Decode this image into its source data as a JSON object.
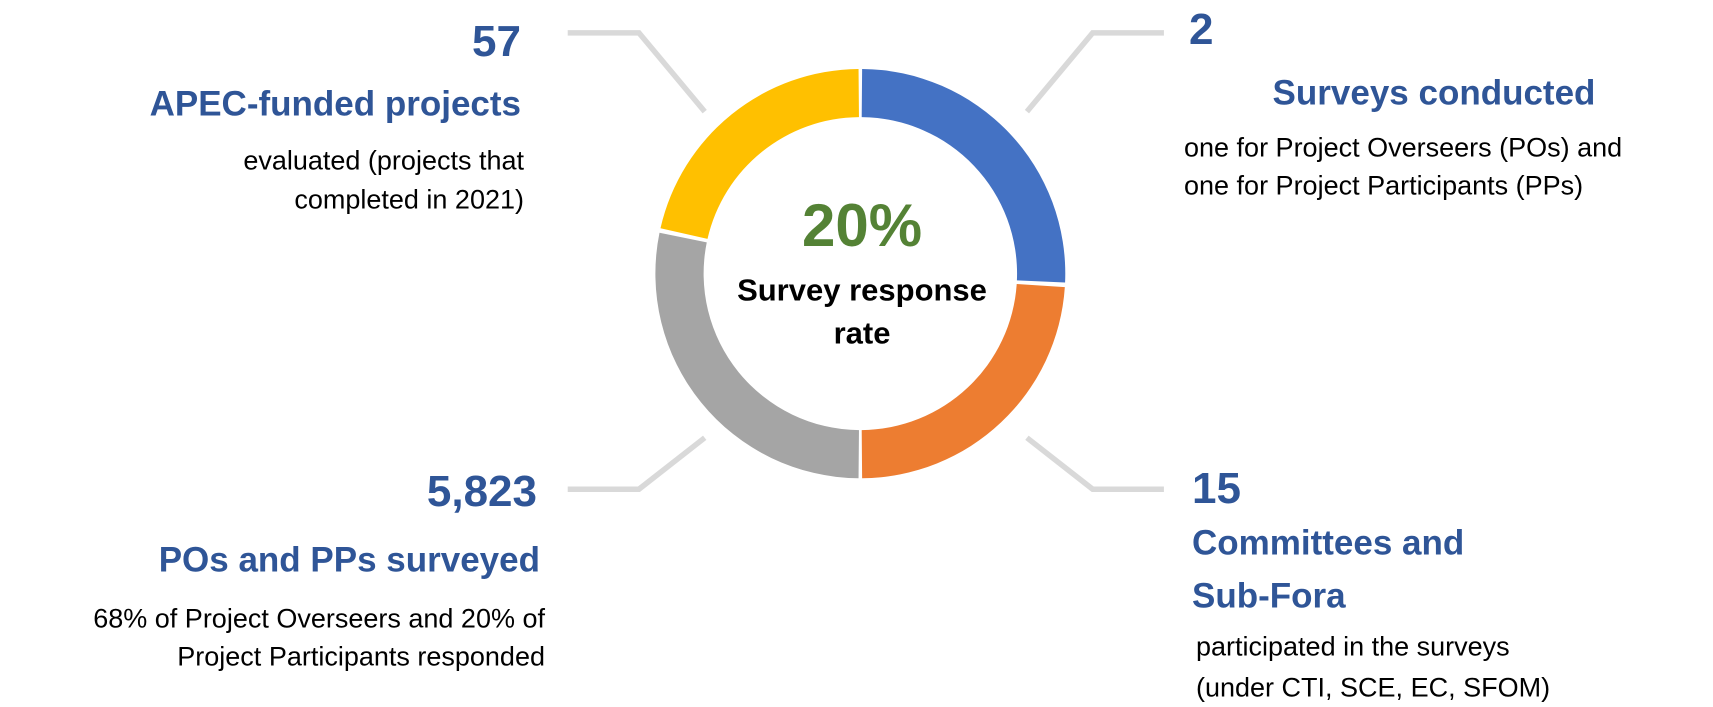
{
  "center": {
    "value": "20%",
    "label": [
      "Survey response",
      "rate"
    ]
  },
  "stats": [
    {
      "number": "57",
      "title": [
        "APEC-funded projects"
      ],
      "description": [
        "evaluated  (projects that",
        "completed in 2021)"
      ]
    },
    {
      "number": "2",
      "title": [
        "Surveys conducted"
      ],
      "description": [
        "one for Project Overseers (POs) and",
        "one for Project Participants (PPs)"
      ]
    },
    {
      "number": "5,823",
      "title": [
        "POs and PPs surveyed"
      ],
      "description": [
        "68% of Project Overseers and 20% of",
        "Project Participants responded"
      ]
    },
    {
      "number": "15",
      "title": [
        "Committees and",
        "Sub-Fora"
      ],
      "description": [
        "participated in the surveys",
        "(under CTI, SCE, EC, SFOM)"
      ]
    }
  ]
}
